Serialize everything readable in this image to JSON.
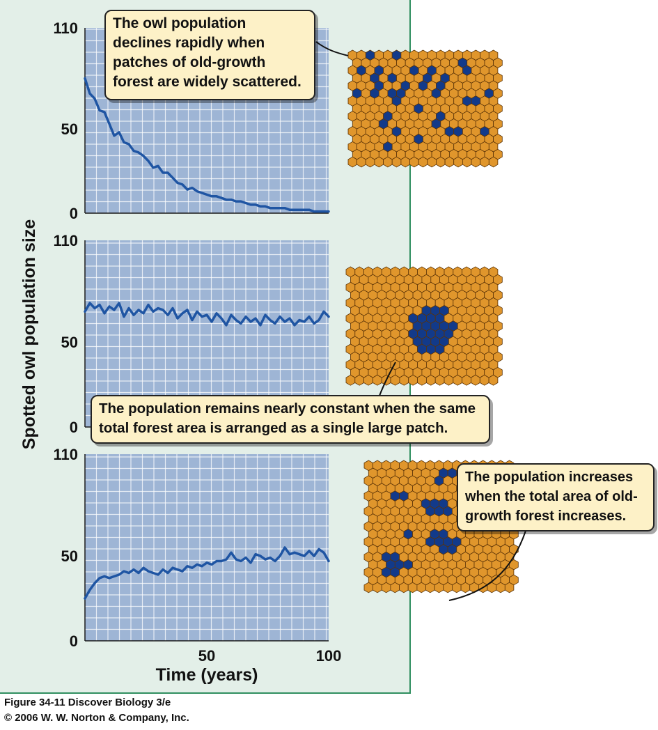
{
  "figure": {
    "caption_line1": "Figure 34-11  Discover Biology 3/e",
    "caption_line2": "© 2006 W. W. Norton & Company, Inc.",
    "colors": {
      "panel_bg": "#e3efe8",
      "panel_border": "#2f8f5f",
      "plot_bg": "#9eb5d5",
      "grid": "#ffffff",
      "line": "#1f55a3",
      "hex_fill": "#e0962c",
      "hex_stroke": "#5c3407",
      "patch_fill": "#123a8a",
      "callout_bg": "#fdf1c7"
    }
  },
  "callouts": {
    "top": "The owl population declines rapidly when patches of old-growth forest are widely scattered.",
    "middle": "The population remains nearly constant when the same total forest area is arranged as a single large patch.",
    "bottom": "The population increases when the total area of old-growth forest increases."
  },
  "chart_data": [
    {
      "type": "line",
      "ylabel": "Spotted owl population size",
      "xlabel": "",
      "xlim": [
        0,
        100
      ],
      "ylim": [
        0,
        110
      ],
      "yticks": [
        0,
        50,
        110
      ],
      "xticks": [],
      "series": [
        {
          "x": [
            0,
            2,
            4,
            6,
            8,
            10,
            12,
            14,
            16,
            18,
            20,
            22,
            24,
            26,
            28,
            30,
            32,
            34,
            36,
            38,
            40,
            42,
            44,
            46,
            48,
            50,
            52,
            54,
            56,
            58,
            60,
            62,
            64,
            66,
            68,
            70,
            72,
            74,
            76,
            78,
            80,
            82,
            84,
            86,
            88,
            90,
            92,
            94,
            96,
            98,
            100
          ],
          "values": [
            80,
            71,
            68,
            61,
            60,
            53,
            46,
            48,
            42,
            41,
            37,
            36,
            34,
            31,
            27,
            28,
            24,
            24,
            21,
            18,
            17,
            14,
            15,
            13,
            12,
            11,
            10,
            10,
            9,
            8,
            8,
            7,
            7,
            6,
            5,
            5,
            4,
            4,
            3,
            3,
            3,
            3,
            2,
            2,
            2,
            2,
            2,
            1,
            1,
            1,
            1
          ]
        }
      ]
    },
    {
      "type": "line",
      "ylabel": "Spotted owl population size",
      "xlabel": "",
      "xlim": [
        0,
        100
      ],
      "ylim": [
        0,
        110
      ],
      "yticks": [
        0,
        50,
        110
      ],
      "xticks": [],
      "series": [
        {
          "x": [
            0,
            2,
            4,
            6,
            8,
            10,
            12,
            14,
            16,
            18,
            20,
            22,
            24,
            26,
            28,
            30,
            32,
            34,
            36,
            38,
            40,
            42,
            44,
            46,
            48,
            50,
            52,
            54,
            56,
            58,
            60,
            62,
            64,
            66,
            68,
            70,
            72,
            74,
            76,
            78,
            80,
            82,
            84,
            86,
            88,
            90,
            92,
            94,
            96,
            98,
            100
          ],
          "values": [
            68,
            73,
            70,
            72,
            67,
            71,
            69,
            73,
            65,
            70,
            66,
            69,
            67,
            72,
            68,
            70,
            69,
            66,
            70,
            64,
            67,
            69,
            63,
            68,
            65,
            66,
            62,
            67,
            64,
            60,
            66,
            63,
            61,
            65,
            62,
            64,
            60,
            66,
            63,
            61,
            65,
            62,
            64,
            60,
            63,
            62,
            65,
            61,
            63,
            68,
            65
          ]
        }
      ]
    },
    {
      "type": "line",
      "ylabel": "Spotted owl population size",
      "xlabel": "Time (years)",
      "xlim": [
        0,
        100
      ],
      "ylim": [
        0,
        110
      ],
      "yticks": [
        0,
        50,
        110
      ],
      "xticks": [
        50,
        100
      ],
      "series": [
        {
          "x": [
            0,
            2,
            4,
            6,
            8,
            10,
            12,
            14,
            16,
            18,
            20,
            22,
            24,
            26,
            28,
            30,
            32,
            34,
            36,
            38,
            40,
            42,
            44,
            46,
            48,
            50,
            52,
            54,
            56,
            58,
            60,
            62,
            64,
            66,
            68,
            70,
            72,
            74,
            76,
            78,
            80,
            82,
            84,
            86,
            88,
            90,
            92,
            94,
            96,
            98,
            100
          ],
          "values": [
            25,
            30,
            34,
            37,
            38,
            37,
            38,
            39,
            41,
            40,
            42,
            40,
            43,
            41,
            40,
            39,
            42,
            40,
            43,
            42,
            41,
            44,
            43,
            45,
            44,
            46,
            45,
            47,
            47,
            48,
            52,
            48,
            47,
            49,
            46,
            51,
            50,
            48,
            49,
            47,
            50,
            55,
            51,
            52,
            51,
            50,
            53,
            50,
            54,
            52,
            47
          ]
        }
      ]
    }
  ],
  "forest_grids": [
    {
      "name": "scattered",
      "cols": 17,
      "rows": 15,
      "patches": [
        [
          2,
          0
        ],
        [
          5,
          0
        ],
        [
          12,
          1
        ],
        [
          1,
          2
        ],
        [
          3,
          2
        ],
        [
          7,
          2
        ],
        [
          9,
          2
        ],
        [
          13,
          2
        ],
        [
          2,
          3
        ],
        [
          4,
          3
        ],
        [
          8,
          3
        ],
        [
          10,
          3
        ],
        [
          3,
          4
        ],
        [
          6,
          4
        ],
        [
          8,
          4
        ],
        [
          10,
          4
        ],
        [
          0,
          5
        ],
        [
          2,
          5
        ],
        [
          4,
          5
        ],
        [
          5,
          5
        ],
        [
          9,
          5
        ],
        [
          15,
          5
        ],
        [
          5,
          6
        ],
        [
          13,
          6
        ],
        [
          14,
          6
        ],
        [
          7,
          7
        ],
        [
          4,
          8
        ],
        [
          10,
          8
        ],
        [
          3,
          9
        ],
        [
          9,
          9
        ],
        [
          5,
          10
        ],
        [
          11,
          10
        ],
        [
          12,
          10
        ],
        [
          15,
          10
        ],
        [
          7,
          11
        ],
        [
          4,
          12
        ]
      ]
    },
    {
      "name": "single-large",
      "cols": 17,
      "rows": 15,
      "patches": [
        [
          8,
          5
        ],
        [
          9,
          5
        ],
        [
          10,
          5
        ],
        [
          7,
          6
        ],
        [
          8,
          6
        ],
        [
          9,
          6
        ],
        [
          10,
          6
        ],
        [
          7,
          7
        ],
        [
          8,
          7
        ],
        [
          9,
          7
        ],
        [
          10,
          7
        ],
        [
          11,
          7
        ],
        [
          7,
          8
        ],
        [
          8,
          8
        ],
        [
          9,
          8
        ],
        [
          10,
          8
        ],
        [
          11,
          8
        ],
        [
          7,
          9
        ],
        [
          8,
          9
        ],
        [
          9,
          9
        ],
        [
          10,
          9
        ],
        [
          8,
          10
        ],
        [
          9,
          10
        ],
        [
          10,
          10
        ]
      ]
    },
    {
      "name": "increased",
      "cols": 17,
      "rows": 17,
      "patches": [
        [
          8,
          1
        ],
        [
          9,
          1
        ],
        [
          8,
          2
        ],
        [
          3,
          4
        ],
        [
          4,
          4
        ],
        [
          6,
          5
        ],
        [
          7,
          5
        ],
        [
          8,
          5
        ],
        [
          7,
          6
        ],
        [
          8,
          6
        ],
        [
          9,
          6
        ],
        [
          4,
          9
        ],
        [
          7,
          9
        ],
        [
          8,
          9
        ],
        [
          7,
          10
        ],
        [
          8,
          10
        ],
        [
          9,
          10
        ],
        [
          10,
          10
        ],
        [
          8,
          11
        ],
        [
          9,
          11
        ],
        [
          2,
          12
        ],
        [
          3,
          12
        ],
        [
          2,
          13
        ],
        [
          3,
          13
        ],
        [
          4,
          13
        ],
        [
          2,
          14
        ],
        [
          3,
          14
        ]
      ]
    }
  ]
}
